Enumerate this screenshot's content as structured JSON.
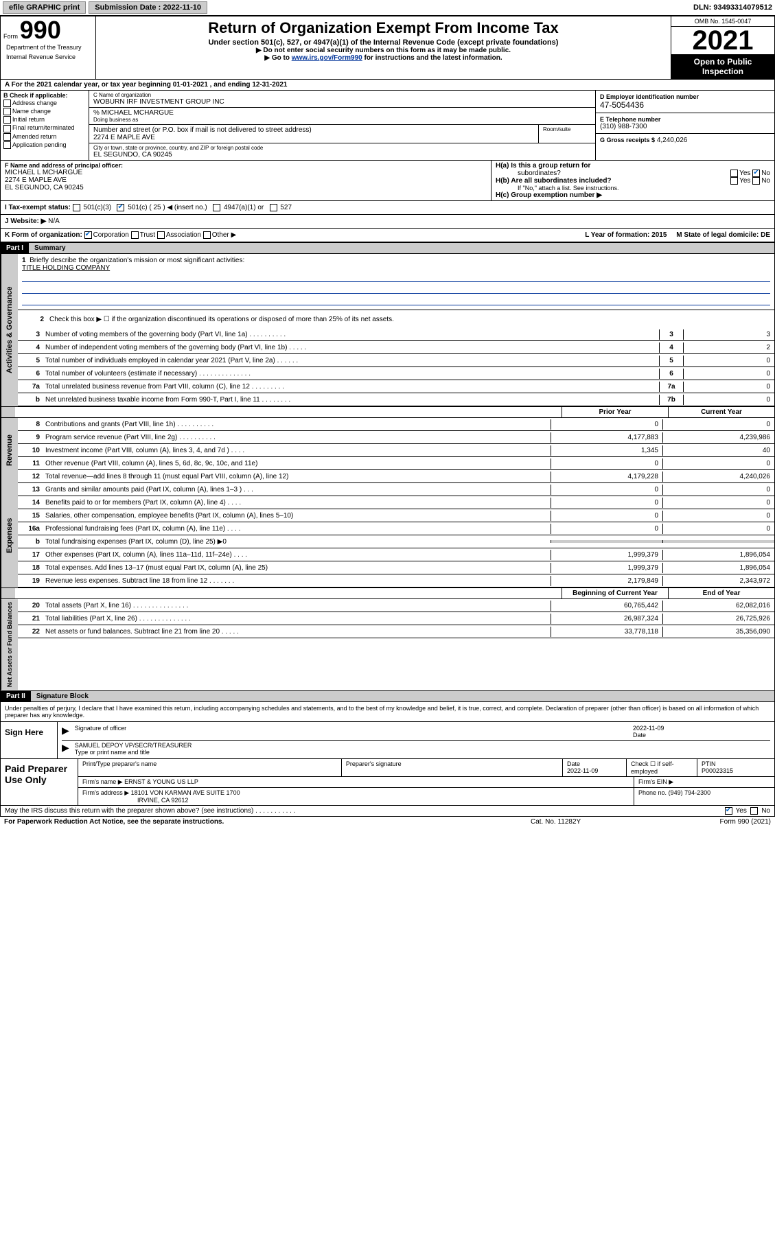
{
  "top_bar": {
    "efile": "efile GRAPHIC print",
    "submission_label": "Submission Date : 2022-11-10",
    "dln": "DLN: 93493314079512"
  },
  "header": {
    "form_label": "Form",
    "form_number": "990",
    "title": "Return of Organization Exempt From Income Tax",
    "sub1": "Under section 501(c), 527, or 4947(a)(1) of the Internal Revenue Code (except private foundations)",
    "sub2": "▶ Do not enter social security numbers on this form as it may be made public.",
    "sub3_pre": "▶ Go to ",
    "sub3_link": "www.irs.gov/Form990",
    "sub3_post": " for instructions and the latest information.",
    "omb": "OMB No. 1545-0047",
    "year": "2021",
    "open_pub": "Open to Public Inspection",
    "dept": "Department of the Treasury",
    "irs": "Internal Revenue Service"
  },
  "row_a": "A For the 2021 calendar year, or tax year beginning 01-01-2021   , and ending 12-31-2021",
  "section_b": {
    "heading": "B Check if applicable:",
    "opts": [
      "Address change",
      "Name change",
      "Initial return",
      "Final return/terminated",
      "Amended return",
      "Application pending"
    ],
    "c_label": "C Name of organization",
    "c_val": "WOBURN IRF INVESTMENT GROUP INC",
    "care_of": "% MICHAEL MCHARGUE",
    "dba_label": "Doing business as",
    "addr_label": "Number and street (or P.O. box if mail is not delivered to street address)",
    "addr_val": "2274 E MAPLE AVE",
    "room_label": "Room/suite",
    "city_label": "City or town, state or province, country, and ZIP or foreign postal code",
    "city_val": "EL SEGUNDO, CA  90245",
    "d_label": "D Employer identification number",
    "d_val": "47-5054436",
    "e_label": "E Telephone number",
    "e_val": "(310) 988-7300",
    "g_label": "G Gross receipts $",
    "g_val": "4,240,026"
  },
  "section_f": {
    "f_label": "F Name and address of principal officer:",
    "f_name": "MICHAEL L MCHARGUE",
    "f_addr1": "2274 E MAPLE AVE",
    "f_addr2": "EL SEGUNDO, CA  90245",
    "ha_label": "H(a)  Is this a group return for",
    "ha_sub": "subordinates?",
    "ha_yes": "Yes",
    "ha_no": "No",
    "hb_label": "H(b)  Are all subordinates included?",
    "hb_note": "If \"No,\" attach a list. See instructions.",
    "hc_label": "H(c)  Group exemption number ▶"
  },
  "status": {
    "i_label": "I   Tax-exempt status:",
    "o1": "501(c)(3)",
    "o2": "501(c) ( 25 ) ◀ (insert no.)",
    "o3": "4947(a)(1) or",
    "o4": "527",
    "j_label": "J   Website: ▶",
    "j_val": "N/A"
  },
  "form_org": {
    "k_label": "K Form of organization:",
    "opts": [
      "Corporation",
      "Trust",
      "Association",
      "Other ▶"
    ],
    "l_label": "L Year of formation: 2015",
    "m_label": "M State of legal domicile: DE"
  },
  "part1": {
    "header": "Part I",
    "title": "Summary",
    "l1": "Briefly describe the organization's mission or most significant activities:",
    "l1_val": "TITLE HOLDING COMPANY",
    "l2": "Check this box ▶ ☐  if the organization discontinued its operations or disposed of more than 25% of its net assets.",
    "lines_gov": [
      {
        "n": "3",
        "d": "Number of voting members of the governing body (Part VI, line 1a)   .    .    .    .    .    .    .    .    .    .",
        "c": "3",
        "v": "3"
      },
      {
        "n": "4",
        "d": "Number of independent voting members of the governing body (Part VI, line 1b)    .    .    .    .    .",
        "c": "4",
        "v": "2"
      },
      {
        "n": "5",
        "d": "Total number of individuals employed in calendar year 2021 (Part V, line 2a)    .    .    .    .    .    .",
        "c": "5",
        "v": "0"
      },
      {
        "n": "6",
        "d": "Total number of volunteers (estimate if necessary)    .    .    .    .    .    .    .    .    .    .    .    .    .    .",
        "c": "6",
        "v": "0"
      },
      {
        "n": "7a",
        "d": "Total unrelated business revenue from Part VIII, column (C), line 12   .    .    .    .    .    .    .    .    .",
        "c": "7a",
        "v": "0"
      },
      {
        "n": "b",
        "d": "Net unrelated business taxable income from Form 990-T, Part I, line 11   .    .    .    .    .    .    .    .",
        "c": "7b",
        "v": "0"
      }
    ],
    "rev_header_prior": "Prior Year",
    "rev_header_curr": "Current Year",
    "lines_rev": [
      {
        "n": "8",
        "d": "Contributions and grants (Part VIII, line 1h)   .    .    .    .    .    .    .    .    .    .",
        "p": "0",
        "c": "0"
      },
      {
        "n": "9",
        "d": "Program service revenue (Part VIII, line 2g)   .    .    .    .    .    .    .    .    .    .",
        "p": "4,177,883",
        "c": "4,239,986"
      },
      {
        "n": "10",
        "d": "Investment income (Part VIII, column (A), lines 3, 4, and 7d )   .    .    .    .",
        "p": "1,345",
        "c": "40"
      },
      {
        "n": "11",
        "d": "Other revenue (Part VIII, column (A), lines 5, 6d, 8c, 9c, 10c, and 11e)",
        "p": "0",
        "c": "0"
      },
      {
        "n": "12",
        "d": "Total revenue—add lines 8 through 11 (must equal Part VIII, column (A), line 12)",
        "p": "4,179,228",
        "c": "4,240,026"
      }
    ],
    "lines_exp": [
      {
        "n": "13",
        "d": "Grants and similar amounts paid (Part IX, column (A), lines 1–3 )   .    .    .",
        "p": "0",
        "c": "0"
      },
      {
        "n": "14",
        "d": "Benefits paid to or for members (Part IX, column (A), line 4)   .    .    .    .",
        "p": "0",
        "c": "0"
      },
      {
        "n": "15",
        "d": "Salaries, other compensation, employee benefits (Part IX, column (A), lines 5–10)",
        "p": "0",
        "c": "0"
      },
      {
        "n": "16a",
        "d": "Professional fundraising fees (Part IX, column (A), line 11e)    .    .    .    .",
        "p": "0",
        "c": "0"
      },
      {
        "n": "b",
        "d": "Total fundraising expenses (Part IX, column (D), line 25) ▶0",
        "p": "",
        "c": "",
        "grey": true
      },
      {
        "n": "17",
        "d": "Other expenses (Part IX, column (A), lines 11a–11d, 11f–24e)   .    .    .    .",
        "p": "1,999,379",
        "c": "1,896,054"
      },
      {
        "n": "18",
        "d": "Total expenses. Add lines 13–17 (must equal Part IX, column (A), line 25)",
        "p": "1,999,379",
        "c": "1,896,054"
      },
      {
        "n": "19",
        "d": "Revenue less expenses. Subtract line 18 from line 12   .    .    .    .    .    .    .",
        "p": "2,179,849",
        "c": "2,343,972"
      }
    ],
    "net_header_begin": "Beginning of Current Year",
    "net_header_end": "End of Year",
    "lines_net": [
      {
        "n": "20",
        "d": "Total assets (Part X, line 16)   .    .    .    .    .    .    .    .    .    .    .    .    .    .    .",
        "p": "60,765,442",
        "c": "62,082,016"
      },
      {
        "n": "21",
        "d": "Total liabilities (Part X, line 26)   .    .    .    .    .    .    .    .    .    .    .    .    .    .",
        "p": "26,987,324",
        "c": "26,725,926"
      },
      {
        "n": "22",
        "d": "Net assets or fund balances. Subtract line 21 from line 20   .    .    .    .    .",
        "p": "33,778,118",
        "c": "35,356,090"
      }
    ],
    "vtab_gov": "Activities & Governance",
    "vtab_rev": "Revenue",
    "vtab_exp": "Expenses",
    "vtab_net": "Net Assets or Fund Balances"
  },
  "part2": {
    "header": "Part II",
    "title": "Signature Block",
    "penalty": "Under penalties of perjury, I declare that I have examined this return, including accompanying schedules and statements, and to the best of my knowledge and belief, it is true, correct, and complete. Declaration of preparer (other than officer) is based on all information of which preparer has any knowledge.",
    "sign_here": "Sign Here",
    "sig_officer": "Signature of officer",
    "sig_date_label": "Date",
    "sig_date": "2022-11-09",
    "sig_name": "SAMUEL DEPOY VP/SECR/TREASURER",
    "sig_type_label": "Type or print name and title",
    "paid_prep": "Paid Preparer Use Only",
    "prep_name_label": "Print/Type preparer's name",
    "prep_sig_label": "Preparer's signature",
    "prep_date_label": "Date",
    "prep_date": "2022-11-09",
    "prep_check": "Check ☐ if self-employed",
    "ptin_label": "PTIN",
    "ptin": "P00023315",
    "firm_name_label": "Firm's name    ▶",
    "firm_name": "ERNST & YOUNG US LLP",
    "firm_ein_label": "Firm's EIN ▶",
    "firm_addr_label": "Firm's address ▶",
    "firm_addr1": "18101 VON KARMAN AVE SUITE 1700",
    "firm_addr2": "IRVINE, CA  92612",
    "firm_phone_label": "Phone no.",
    "firm_phone": "(949) 794-2300",
    "discuss": "May the IRS discuss this return with the preparer shown above? (see instructions)   .    .    .    .    .    .    .    .    .    .    .",
    "yes": "Yes",
    "no": "No"
  },
  "footer": {
    "left": "For Paperwork Reduction Act Notice, see the separate instructions.",
    "mid": "Cat. No. 11282Y",
    "right": "Form 990 (2021)"
  },
  "colors": {
    "link": "#003399",
    "grey_bg": "#cccccc",
    "check_blue": "#0066cc"
  }
}
